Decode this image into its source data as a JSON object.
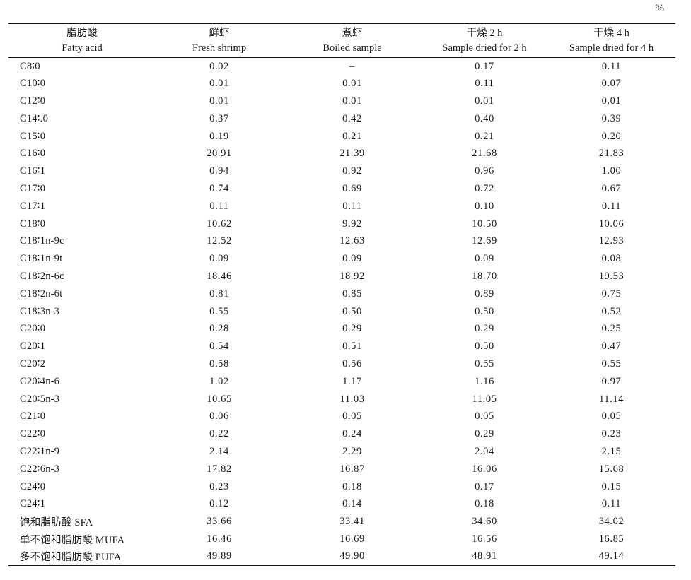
{
  "unit": "%",
  "columns": [
    {
      "cn": "脂肪酸",
      "en": "Fatty acid"
    },
    {
      "cn": "鲜虾",
      "en": "Fresh shrimp"
    },
    {
      "cn": "煮虾",
      "en": "Boiled sample"
    },
    {
      "cn": "干燥 2 h",
      "en": "Sample dried for 2 h"
    },
    {
      "cn": "干燥 4 h",
      "en": "Sample dried for 4 h"
    }
  ],
  "rows": [
    [
      "C8∶0",
      "0.02",
      "–",
      "0.17",
      "0.11"
    ],
    [
      "C10∶0",
      "0.01",
      "0.01",
      "0.11",
      "0.07"
    ],
    [
      "C12∶0",
      "0.01",
      "0.01",
      "0.01",
      "0.01"
    ],
    [
      "C14∶.0",
      "0.37",
      "0.42",
      "0.40",
      "0.39"
    ],
    [
      "C15∶0",
      "0.19",
      "0.21",
      "0.21",
      "0.20"
    ],
    [
      "C16∶0",
      "20.91",
      "21.39",
      "21.68",
      "21.83"
    ],
    [
      "C16∶1",
      "0.94",
      "0.92",
      "0.96",
      "1.00"
    ],
    [
      "C17∶0",
      "0.74",
      "0.69",
      "0.72",
      "0.67"
    ],
    [
      "C17∶1",
      "0.11",
      "0.11",
      "0.10",
      "0.11"
    ],
    [
      "C18∶0",
      "10.62",
      "9.92",
      "10.50",
      "10.06"
    ],
    [
      "C18∶1n-9c",
      "12.52",
      "12.63",
      "12.69",
      "12.93"
    ],
    [
      "C18∶1n-9t",
      "0.09",
      "0.09",
      "0.09",
      "0.08"
    ],
    [
      "C18∶2n-6c",
      "18.46",
      "18.92",
      "18.70",
      "19.53"
    ],
    [
      "C18∶2n-6t",
      "0.81",
      "0.85",
      "0.89",
      "0.75"
    ],
    [
      "C18∶3n-3",
      "0.55",
      "0.50",
      "0.50",
      "0.52"
    ],
    [
      "C20∶0",
      "0.28",
      "0.29",
      "0.29",
      "0.25"
    ],
    [
      "C20∶1",
      "0.54",
      "0.51",
      "0.50",
      "0.47"
    ],
    [
      "C20∶2",
      "0.58",
      "0.56",
      "0.55",
      "0.55"
    ],
    [
      "C20∶4n-6",
      "1.02",
      "1.17",
      "1.16",
      "0.97"
    ],
    [
      "C20∶5n-3",
      "10.65",
      "11.03",
      "11.05",
      "11.14"
    ],
    [
      "C21∶0",
      "0.06",
      "0.05",
      "0.05",
      "0.05"
    ],
    [
      "C22∶0",
      "0.22",
      "0.24",
      "0.29",
      "0.23"
    ],
    [
      "C22∶1n-9",
      "2.14",
      "2.29",
      "2.04",
      "2.15"
    ],
    [
      "C22∶6n-3",
      "17.82",
      "16.87",
      "16.06",
      "15.68"
    ],
    [
      "C24∶0",
      "0.23",
      "0.18",
      "0.17",
      "0.15"
    ],
    [
      "C24∶1",
      "0.12",
      "0.14",
      "0.18",
      "0.11"
    ],
    [
      "饱和脂肪酸 SFA",
      "33.66",
      "33.41",
      "34.60",
      "34.02"
    ],
    [
      "单不饱和脂肪酸 MUFA",
      "16.46",
      "16.69",
      "16.56",
      "16.85"
    ],
    [
      "多不饱和脂肪酸 PUFA",
      "49.89",
      "49.90",
      "48.91",
      "49.14"
    ]
  ]
}
